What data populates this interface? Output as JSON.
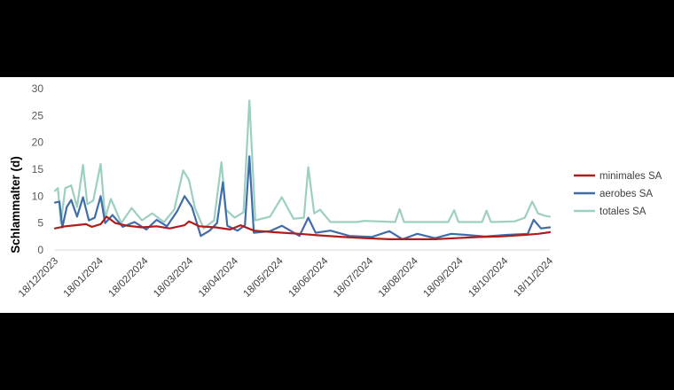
{
  "chart_data": {
    "type": "line",
    "title": "",
    "xlabel": "",
    "ylabel": "Schlammalter (d)",
    "ylim": [
      0,
      30
    ],
    "yticks": [
      "0",
      "5",
      "10",
      "15",
      "20",
      "25",
      "30"
    ],
    "x_tick_labels": [
      "18/12/2023",
      "18/01/2024",
      "18/02/2024",
      "18/03/2024",
      "18/04/2024",
      "18/05/2024",
      "18/06/2024",
      "18/07/2024",
      "18/08/2024",
      "18/09/2024",
      "18/10/2024",
      "18/11/2024"
    ],
    "x_range": [
      "2023-12-18",
      "2024-11-18"
    ],
    "legend_position": "right",
    "grid": false,
    "series": [
      {
        "name": "minimales SA",
        "color": "#b01c1c",
        "points": [
          [
            "2023-12-18",
            4.0
          ],
          [
            "2023-12-25",
            4.4
          ],
          [
            "2024-01-01",
            4.6
          ],
          [
            "2024-01-08",
            4.8
          ],
          [
            "2024-01-12",
            4.3
          ],
          [
            "2024-01-18",
            4.8
          ],
          [
            "2024-01-22",
            6.2
          ],
          [
            "2024-01-28",
            5.0
          ],
          [
            "2024-02-05",
            4.5
          ],
          [
            "2024-02-15",
            4.2
          ],
          [
            "2024-02-25",
            4.4
          ],
          [
            "2024-03-05",
            4.0
          ],
          [
            "2024-03-15",
            4.6
          ],
          [
            "2024-03-18",
            5.3
          ],
          [
            "2024-03-25",
            4.4
          ],
          [
            "2024-04-05",
            4.2
          ],
          [
            "2024-04-15",
            3.8
          ],
          [
            "2024-04-22",
            4.6
          ],
          [
            "2024-05-01",
            3.6
          ],
          [
            "2024-05-15",
            3.3
          ],
          [
            "2024-06-01",
            3.0
          ],
          [
            "2024-06-15",
            2.7
          ],
          [
            "2024-07-01",
            2.4
          ],
          [
            "2024-07-15",
            2.2
          ],
          [
            "2024-08-01",
            2.0
          ],
          [
            "2024-08-15",
            2.0
          ],
          [
            "2024-09-01",
            2.0
          ],
          [
            "2024-09-15",
            2.2
          ],
          [
            "2024-10-01",
            2.4
          ],
          [
            "2024-10-15",
            2.5
          ],
          [
            "2024-11-01",
            2.8
          ],
          [
            "2024-11-10",
            3.0
          ],
          [
            "2024-11-18",
            3.3
          ]
        ]
      },
      {
        "name": "aerobes SA",
        "color": "#3f6da8",
        "points": [
          [
            "2023-12-18",
            8.8
          ],
          [
            "2023-12-21",
            9.0
          ],
          [
            "2023-12-23",
            4.2
          ],
          [
            "2023-12-26",
            8.0
          ],
          [
            "2023-12-29",
            9.3
          ],
          [
            "2024-01-02",
            6.2
          ],
          [
            "2024-01-06",
            9.8
          ],
          [
            "2024-01-10",
            5.5
          ],
          [
            "2024-01-14",
            6.0
          ],
          [
            "2024-01-18",
            10.0
          ],
          [
            "2024-01-21",
            5.0
          ],
          [
            "2024-01-26",
            6.5
          ],
          [
            "2024-02-02",
            4.3
          ],
          [
            "2024-02-10",
            5.2
          ],
          [
            "2024-02-18",
            3.8
          ],
          [
            "2024-02-25",
            5.6
          ],
          [
            "2024-03-03",
            4.4
          ],
          [
            "2024-03-10",
            7.2
          ],
          [
            "2024-03-15",
            10.0
          ],
          [
            "2024-03-20",
            8.0
          ],
          [
            "2024-03-26",
            2.6
          ],
          [
            "2024-04-01",
            3.6
          ],
          [
            "2024-04-06",
            5.0
          ],
          [
            "2024-04-10",
            12.6
          ],
          [
            "2024-04-13",
            4.5
          ],
          [
            "2024-04-20",
            3.6
          ],
          [
            "2024-04-25",
            4.6
          ],
          [
            "2024-04-28",
            17.4
          ],
          [
            "2024-05-01",
            3.2
          ],
          [
            "2024-05-12",
            3.5
          ],
          [
            "2024-05-20",
            4.5
          ],
          [
            "2024-06-01",
            2.6
          ],
          [
            "2024-06-07",
            6.0
          ],
          [
            "2024-06-12",
            3.2
          ],
          [
            "2024-06-22",
            3.6
          ],
          [
            "2024-07-05",
            2.6
          ],
          [
            "2024-07-20",
            2.4
          ],
          [
            "2024-08-01",
            3.5
          ],
          [
            "2024-08-10",
            2.0
          ],
          [
            "2024-08-20",
            3.0
          ],
          [
            "2024-09-01",
            2.2
          ],
          [
            "2024-09-12",
            3.0
          ],
          [
            "2024-09-22",
            2.8
          ],
          [
            "2024-10-05",
            2.5
          ],
          [
            "2024-10-20",
            2.8
          ],
          [
            "2024-11-03",
            3.0
          ],
          [
            "2024-11-07",
            5.6
          ],
          [
            "2024-11-12",
            4.0
          ],
          [
            "2024-11-18",
            4.2
          ]
        ]
      },
      {
        "name": "totales SA",
        "color": "#9ccfc2",
        "points": [
          [
            "2023-12-18",
            11.0
          ],
          [
            "2023-12-20",
            11.5
          ],
          [
            "2023-12-22",
            5.0
          ],
          [
            "2023-12-25",
            11.5
          ],
          [
            "2023-12-29",
            12.0
          ],
          [
            "2024-01-02",
            8.0
          ],
          [
            "2024-01-06",
            15.8
          ],
          [
            "2024-01-09",
            8.5
          ],
          [
            "2024-01-13",
            9.2
          ],
          [
            "2024-01-18",
            16.0
          ],
          [
            "2024-01-21",
            6.0
          ],
          [
            "2024-01-25",
            9.5
          ],
          [
            "2024-02-01",
            5.0
          ],
          [
            "2024-02-08",
            7.8
          ],
          [
            "2024-02-15",
            5.5
          ],
          [
            "2024-02-22",
            6.8
          ],
          [
            "2024-03-01",
            5.2
          ],
          [
            "2024-03-08",
            7.5
          ],
          [
            "2024-03-14",
            14.8
          ],
          [
            "2024-03-18",
            13.0
          ],
          [
            "2024-03-22",
            7.8
          ],
          [
            "2024-03-28",
            4.0
          ],
          [
            "2024-04-04",
            5.5
          ],
          [
            "2024-04-09",
            16.3
          ],
          [
            "2024-04-12",
            7.5
          ],
          [
            "2024-04-18",
            6.0
          ],
          [
            "2024-04-24",
            7.0
          ],
          [
            "2024-04-28",
            27.8
          ],
          [
            "2024-05-02",
            5.5
          ],
          [
            "2024-05-12",
            6.2
          ],
          [
            "2024-05-20",
            9.8
          ],
          [
            "2024-05-28",
            5.8
          ],
          [
            "2024-06-04",
            6.0
          ],
          [
            "2024-06-07",
            15.4
          ],
          [
            "2024-06-11",
            6.8
          ],
          [
            "2024-06-15",
            7.5
          ],
          [
            "2024-06-22",
            5.2
          ],
          [
            "2024-07-10",
            5.2
          ],
          [
            "2024-07-15",
            5.4
          ],
          [
            "2024-08-05",
            5.2
          ],
          [
            "2024-08-08",
            7.6
          ],
          [
            "2024-08-11",
            5.2
          ],
          [
            "2024-09-10",
            5.2
          ],
          [
            "2024-09-14",
            7.4
          ],
          [
            "2024-09-17",
            5.2
          ],
          [
            "2024-10-03",
            5.2
          ],
          [
            "2024-10-06",
            7.3
          ],
          [
            "2024-10-09",
            5.2
          ],
          [
            "2024-10-25",
            5.3
          ],
          [
            "2024-11-01",
            6.0
          ],
          [
            "2024-11-06",
            9.0
          ],
          [
            "2024-11-10",
            6.8
          ],
          [
            "2024-11-14",
            6.4
          ],
          [
            "2024-11-18",
            6.2
          ]
        ]
      }
    ]
  }
}
